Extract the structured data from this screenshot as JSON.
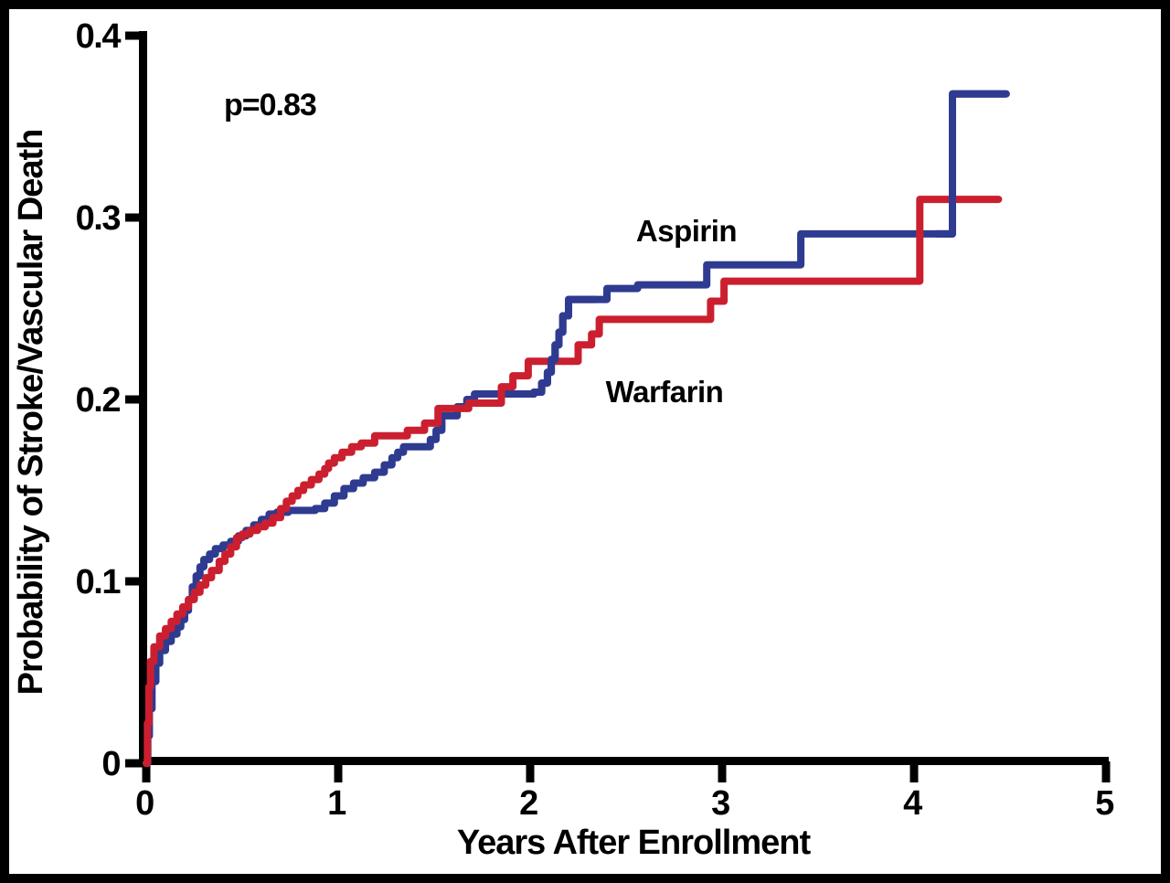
{
  "chart_data": {
    "type": "line",
    "subtype": "kaplan-meier-step",
    "title": "",
    "xlabel": "Years After Enrollment",
    "ylabel": "Probability of Stroke/Vascular Death",
    "xlim": [
      0,
      5
    ],
    "ylim": [
      0,
      0.4
    ],
    "grid": "off",
    "legend_position": "inline-labels-on-plot",
    "annotations": [
      {
        "text": "p=0.83",
        "x": 0.41,
        "y": 0.357,
        "color": "#000000"
      }
    ],
    "xticks": [
      {
        "value": 0,
        "label": "0"
      },
      {
        "value": 1,
        "label": "1"
      },
      {
        "value": 2,
        "label": "2"
      },
      {
        "value": 3,
        "label": "3"
      },
      {
        "value": 4,
        "label": "4"
      },
      {
        "value": 5,
        "label": "5"
      }
    ],
    "yticks": [
      {
        "value": 0.0,
        "label": "0"
      },
      {
        "value": 0.1,
        "label": "0.1"
      },
      {
        "value": 0.2,
        "label": "0.2"
      },
      {
        "value": 0.3,
        "label": "0.3"
      },
      {
        "value": 0.4,
        "label": "0.4"
      }
    ],
    "series": [
      {
        "name": "Aspirin",
        "color": "#2E3B90",
        "label_pos": {
          "x": 2.81,
          "y": 0.289
        },
        "points": [
          [
            0,
            0
          ],
          [
            0.008,
            0.015
          ],
          [
            0.016,
            0.03
          ],
          [
            0.03,
            0.045
          ],
          [
            0.05,
            0.055
          ],
          [
            0.07,
            0.062
          ],
          [
            0.1,
            0.067
          ],
          [
            0.13,
            0.071
          ],
          [
            0.16,
            0.075
          ],
          [
            0.18,
            0.079
          ],
          [
            0.2,
            0.084
          ],
          [
            0.22,
            0.09
          ],
          [
            0.24,
            0.097
          ],
          [
            0.26,
            0.103
          ],
          [
            0.28,
            0.108
          ],
          [
            0.3,
            0.112
          ],
          [
            0.33,
            0.115
          ],
          [
            0.36,
            0.118
          ],
          [
            0.4,
            0.12
          ],
          [
            0.44,
            0.122
          ],
          [
            0.48,
            0.125
          ],
          [
            0.52,
            0.128
          ],
          [
            0.56,
            0.131
          ],
          [
            0.6,
            0.134
          ],
          [
            0.64,
            0.137
          ],
          [
            0.68,
            0.138
          ],
          [
            0.74,
            0.139
          ],
          [
            0.88,
            0.14
          ],
          [
            0.93,
            0.143
          ],
          [
            0.98,
            0.147
          ],
          [
            1.03,
            0.151
          ],
          [
            1.08,
            0.154
          ],
          [
            1.13,
            0.157
          ],
          [
            1.19,
            0.16
          ],
          [
            1.24,
            0.164
          ],
          [
            1.28,
            0.168
          ],
          [
            1.31,
            0.171
          ],
          [
            1.34,
            0.174
          ],
          [
            1.48,
            0.178
          ],
          [
            1.51,
            0.183
          ],
          [
            1.54,
            0.191
          ],
          [
            1.62,
            0.196
          ],
          [
            1.67,
            0.2
          ],
          [
            1.71,
            0.203
          ],
          [
            2.02,
            0.204
          ],
          [
            2.06,
            0.209
          ],
          [
            2.09,
            0.215
          ],
          [
            2.11,
            0.222
          ],
          [
            2.13,
            0.23
          ],
          [
            2.15,
            0.237
          ],
          [
            2.17,
            0.246
          ],
          [
            2.2,
            0.255
          ],
          [
            2.4,
            0.261
          ],
          [
            2.56,
            0.263
          ],
          [
            2.92,
            0.274
          ],
          [
            3.41,
            0.291
          ],
          [
            4.2,
            0.368
          ],
          [
            4.48,
            0.368
          ]
        ]
      },
      {
        "name": "Warfarin",
        "color": "#CB1F2F",
        "label_pos": {
          "x": 2.7,
          "y": 0.205
        },
        "points": [
          [
            0,
            0
          ],
          [
            0.006,
            0.022
          ],
          [
            0.014,
            0.042
          ],
          [
            0.022,
            0.056
          ],
          [
            0.04,
            0.064
          ],
          [
            0.07,
            0.07
          ],
          [
            0.1,
            0.074
          ],
          [
            0.13,
            0.078
          ],
          [
            0.16,
            0.082
          ],
          [
            0.19,
            0.086
          ],
          [
            0.22,
            0.09
          ],
          [
            0.25,
            0.094
          ],
          [
            0.28,
            0.098
          ],
          [
            0.31,
            0.102
          ],
          [
            0.34,
            0.106
          ],
          [
            0.38,
            0.111
          ],
          [
            0.41,
            0.115
          ],
          [
            0.44,
            0.119
          ],
          [
            0.47,
            0.124
          ],
          [
            0.5,
            0.126
          ],
          [
            0.54,
            0.128
          ],
          [
            0.58,
            0.13
          ],
          [
            0.62,
            0.132
          ],
          [
            0.66,
            0.135
          ],
          [
            0.7,
            0.14
          ],
          [
            0.73,
            0.144
          ],
          [
            0.76,
            0.147
          ],
          [
            0.79,
            0.15
          ],
          [
            0.82,
            0.153
          ],
          [
            0.86,
            0.156
          ],
          [
            0.9,
            0.159
          ],
          [
            0.93,
            0.162
          ],
          [
            0.95,
            0.165
          ],
          [
            0.98,
            0.168
          ],
          [
            1.02,
            0.171
          ],
          [
            1.07,
            0.174
          ],
          [
            1.12,
            0.176
          ],
          [
            1.19,
            0.18
          ],
          [
            1.36,
            0.183
          ],
          [
            1.45,
            0.187
          ],
          [
            1.52,
            0.195
          ],
          [
            1.68,
            0.198
          ],
          [
            1.85,
            0.207
          ],
          [
            1.91,
            0.213
          ],
          [
            1.99,
            0.221
          ],
          [
            2.25,
            0.23
          ],
          [
            2.32,
            0.236
          ],
          [
            2.36,
            0.244
          ],
          [
            2.94,
            0.254
          ],
          [
            3.01,
            0.265
          ],
          [
            4.03,
            0.31
          ],
          [
            4.44,
            0.31
          ]
        ]
      }
    ]
  },
  "figure": {
    "background_color": "#ffffff",
    "border_color": "#000000"
  }
}
